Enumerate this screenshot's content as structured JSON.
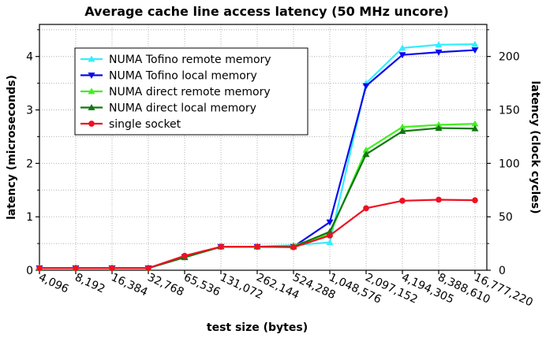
{
  "chart_data": {
    "type": "line",
    "title": "Average cache line access latency (50 MHz uncore)",
    "xlabel": "test size (bytes)",
    "ylabel": "latency (microseconds)",
    "y2label": "latency (clock cycles)",
    "categories": [
      "4,096",
      "8,192",
      "16,384",
      "32,768",
      "65,536",
      "131,072",
      "262,144",
      "524,288",
      "1,048,576",
      "2,097,152",
      "4,194,305",
      "8,388,610",
      "16,777,220"
    ],
    "ylim": [
      0,
      4.6
    ],
    "yticks": [
      "0",
      "1",
      "2",
      "3",
      "4"
    ],
    "y2lim": [
      0,
      230
    ],
    "y2ticks": [
      "0",
      "50",
      "100",
      "150",
      "200"
    ],
    "grid": true,
    "legend_position": "top-left",
    "series": [
      {
        "name": "NUMA Tofino remote memory",
        "color": "#33eeff",
        "marker": "triangle-up",
        "values": [
          0.04,
          0.04,
          0.04,
          0.04,
          0.25,
          0.44,
          0.44,
          0.47,
          0.52,
          3.5,
          4.16,
          4.22,
          4.23
        ]
      },
      {
        "name": "NUMA Tofino local memory",
        "color": "#0a0aee",
        "marker": "triangle-down",
        "values": [
          0.04,
          0.04,
          0.04,
          0.04,
          0.25,
          0.44,
          0.44,
          0.44,
          0.9,
          3.45,
          4.03,
          4.08,
          4.12
        ]
      },
      {
        "name": "NUMA direct remote memory",
        "color": "#44ee22",
        "marker": "triangle-up",
        "values": [
          0.04,
          0.04,
          0.04,
          0.04,
          0.25,
          0.44,
          0.44,
          0.46,
          0.68,
          2.25,
          2.68,
          2.72,
          2.74
        ]
      },
      {
        "name": "NUMA direct local memory",
        "color": "#117711",
        "marker": "triangle-up",
        "values": [
          0.04,
          0.04,
          0.04,
          0.04,
          0.24,
          0.44,
          0.44,
          0.44,
          0.72,
          2.17,
          2.6,
          2.66,
          2.65
        ]
      },
      {
        "name": "single socket",
        "color": "#ee1122",
        "marker": "circle",
        "values": [
          0.04,
          0.04,
          0.04,
          0.04,
          0.27,
          0.44,
          0.44,
          0.43,
          0.65,
          1.16,
          1.3,
          1.32,
          1.31
        ]
      }
    ]
  }
}
